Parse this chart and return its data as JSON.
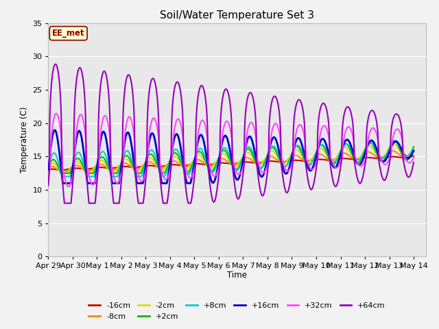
{
  "title": "Soil/Water Temperature Set 3",
  "xlabel": "Time",
  "ylabel": "Temperature (C)",
  "ylim": [
    0,
    35
  ],
  "annotation_text": "EE_met",
  "annotation_bg": "#ffffcc",
  "annotation_border": "#880000",
  "x_tick_labels": [
    "Apr 29",
    "Apr 30",
    "May 1",
    "May 2",
    "May 3",
    "May 4",
    "May 5",
    "May 6",
    "May 7",
    "May 8",
    "May 9",
    "May 10",
    "May 11",
    "May 12",
    "May 13",
    "May 14"
  ],
  "series": [
    {
      "label": "-16cm",
      "color": "#cc0000",
      "lw": 1.5
    },
    {
      "label": "-8cm",
      "color": "#ff8800",
      "lw": 1.5
    },
    {
      "label": "-2cm",
      "color": "#dddd00",
      "lw": 1.5
    },
    {
      "label": "+2cm",
      "color": "#00bb00",
      "lw": 1.5
    },
    {
      "label": "+8cm",
      "color": "#00cccc",
      "lw": 1.5
    },
    {
      "label": "+16cm",
      "color": "#0000cc",
      "lw": 2.0
    },
    {
      "label": "+32cm",
      "color": "#ff44ff",
      "lw": 1.5
    },
    {
      "label": "+64cm",
      "color": "#9900bb",
      "lw": 1.5
    }
  ]
}
